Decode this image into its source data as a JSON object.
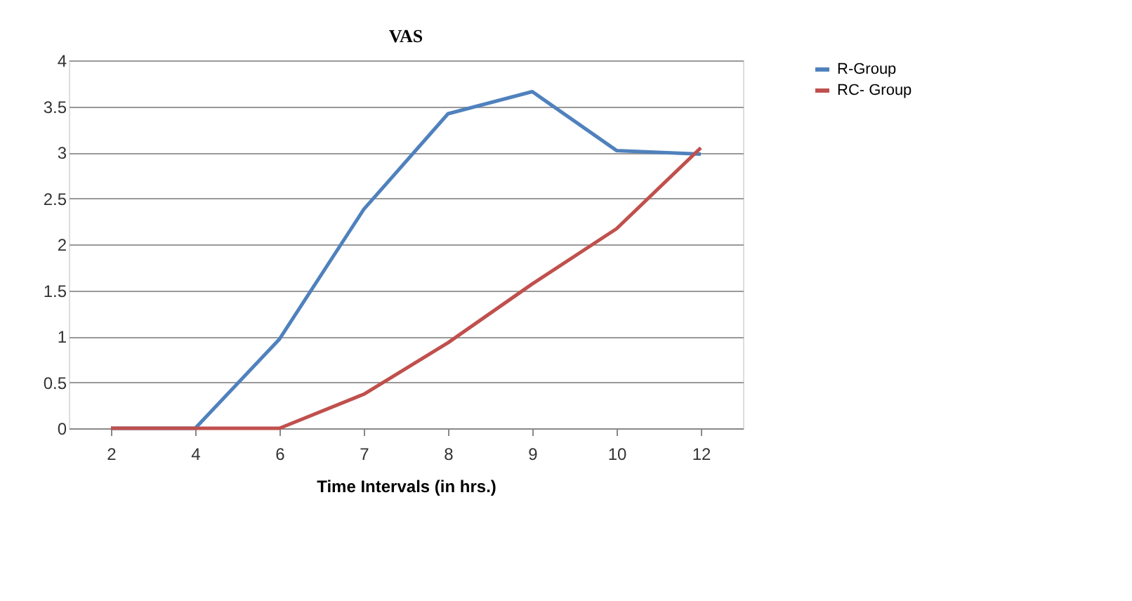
{
  "chart_data": {
    "type": "line",
    "title": "VAS",
    "xlabel": "Time Intervals (in hrs.)",
    "categories": [
      "2",
      "4",
      "6",
      "7",
      "8",
      "9",
      "10",
      "12"
    ],
    "series": [
      {
        "name": "R-Group",
        "color": "#4f81bd",
        "values": [
          0,
          0,
          0.97,
          2.38,
          3.42,
          3.66,
          3.02,
          2.98
        ]
      },
      {
        "name": "RC- Group",
        "color": "#c0504d",
        "values": [
          0,
          0,
          0,
          0.37,
          0.93,
          1.57,
          2.17,
          3.05
        ]
      }
    ],
    "ylim": [
      0,
      4
    ],
    "yticks": [
      0,
      0.5,
      1,
      1.5,
      2,
      2.5,
      3,
      3.5,
      4
    ],
    "grid": "y",
    "legend": "right",
    "marker": "none",
    "line_style": "solid"
  }
}
